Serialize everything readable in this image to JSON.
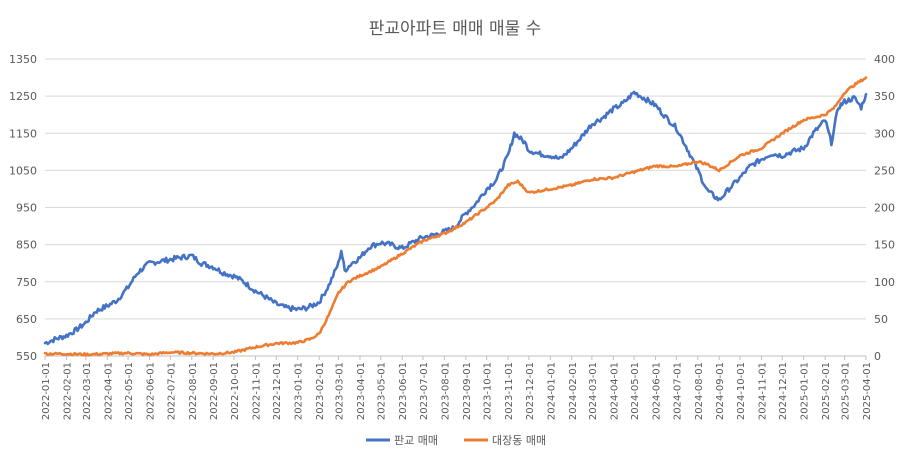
{
  "chart_data": {
    "type": "line",
    "title": "판교아파트 매매 매물 수",
    "xlabel": "",
    "ylabel": "",
    "ylim_left": [
      550,
      1350
    ],
    "ylim_right": [
      0,
      400
    ],
    "y_ticks_left": [
      "550",
      "650",
      "750",
      "850",
      "950",
      "1050",
      "1150",
      "1250",
      "1350"
    ],
    "y_ticks_right": [
      "0",
      "50",
      "100",
      "150",
      "200",
      "250",
      "300",
      "350",
      "400"
    ],
    "x_ticks": [
      "2022-01-01",
      "2022-02-01",
      "2022-03-01",
      "2022-04-01",
      "2022-05-01",
      "2022-06-01",
      "2022-07-01",
      "2022-08-01",
      "2022-09-01",
      "2022-10-01",
      "2022-11-01",
      "2022-12-01",
      "2023-01-01",
      "2023-02-01",
      "2023-03-01",
      "2023-04-01",
      "2023-05-01",
      "2023-06-01",
      "2023-07-01",
      "2023-08-01",
      "2023-09-01",
      "2023-10-01",
      "2023-11-01",
      "2023-12-01",
      "2024-01-01",
      "2024-02-01",
      "2024-03-01",
      "2024-04-01",
      "2024-05-01",
      "2024-06-01",
      "2024-07-01",
      "2024-08-01",
      "2024-09-01",
      "2024-10-01",
      "2024-11-01",
      "2024-12-01",
      "2025-01-01",
      "2025-02-01",
      "2025-03-01",
      "2025-04-01"
    ],
    "grid": true,
    "legend_position": "bottom",
    "series": [
      {
        "name": "판교 매매",
        "axis": "left",
        "color": "#4472C4",
        "points": [
          [
            "2022-01-01",
            585
          ],
          [
            "2022-01-15",
            595
          ],
          [
            "2022-02-01",
            605
          ],
          [
            "2022-02-15",
            620
          ],
          [
            "2022-03-01",
            640
          ],
          [
            "2022-03-15",
            670
          ],
          [
            "2022-04-01",
            685
          ],
          [
            "2022-04-15",
            700
          ],
          [
            "2022-05-01",
            735
          ],
          [
            "2022-05-15",
            775
          ],
          [
            "2022-06-01",
            800
          ],
          [
            "2022-06-15",
            805
          ],
          [
            "2022-07-01",
            810
          ],
          [
            "2022-07-15",
            815
          ],
          [
            "2022-08-01",
            820
          ],
          [
            "2022-08-15",
            800
          ],
          [
            "2022-09-01",
            790
          ],
          [
            "2022-09-15",
            775
          ],
          [
            "2022-10-01",
            765
          ],
          [
            "2022-10-15",
            750
          ],
          [
            "2022-11-01",
            725
          ],
          [
            "2022-11-15",
            710
          ],
          [
            "2022-12-01",
            690
          ],
          [
            "2022-12-15",
            680
          ],
          [
            "2023-01-01",
            675
          ],
          [
            "2023-01-15",
            680
          ],
          [
            "2023-02-01",
            695
          ],
          [
            "2023-02-15",
            740
          ],
          [
            "2023-03-01",
            800
          ],
          [
            "2023-03-05",
            835
          ],
          [
            "2023-03-10",
            780
          ],
          [
            "2023-03-20",
            800
          ],
          [
            "2023-04-01",
            815
          ],
          [
            "2023-04-15",
            845
          ],
          [
            "2023-05-01",
            855
          ],
          [
            "2023-05-15",
            850
          ],
          [
            "2023-06-01",
            840
          ],
          [
            "2023-06-15",
            855
          ],
          [
            "2023-07-01",
            870
          ],
          [
            "2023-07-15",
            875
          ],
          [
            "2023-08-01",
            885
          ],
          [
            "2023-08-15",
            895
          ],
          [
            "2023-09-01",
            935
          ],
          [
            "2023-09-15",
            960
          ],
          [
            "2023-10-01",
            1000
          ],
          [
            "2023-10-15",
            1025
          ],
          [
            "2023-11-01",
            1090
          ],
          [
            "2023-11-10",
            1150
          ],
          [
            "2023-11-25",
            1125
          ],
          [
            "2023-12-01",
            1105
          ],
          [
            "2023-12-15",
            1095
          ],
          [
            "2024-01-01",
            1090
          ],
          [
            "2024-01-15",
            1080
          ],
          [
            "2024-02-01",
            1110
          ],
          [
            "2024-02-15",
            1140
          ],
          [
            "2024-03-01",
            1175
          ],
          [
            "2024-03-15",
            1190
          ],
          [
            "2024-04-01",
            1215
          ],
          [
            "2024-04-15",
            1230
          ],
          [
            "2024-05-01",
            1260
          ],
          [
            "2024-05-15",
            1245
          ],
          [
            "2024-06-01",
            1225
          ],
          [
            "2024-06-15",
            1195
          ],
          [
            "2024-07-01",
            1165
          ],
          [
            "2024-07-15",
            1115
          ],
          [
            "2024-08-01",
            1050
          ],
          [
            "2024-08-15",
            995
          ],
          [
            "2024-09-01",
            970
          ],
          [
            "2024-09-15",
            1000
          ],
          [
            "2024-10-01",
            1030
          ],
          [
            "2024-10-15",
            1060
          ],
          [
            "2024-11-01",
            1080
          ],
          [
            "2024-11-15",
            1095
          ],
          [
            "2024-12-01",
            1090
          ],
          [
            "2024-12-15",
            1100
          ],
          [
            "2025-01-01",
            1110
          ],
          [
            "2025-01-15",
            1150
          ],
          [
            "2025-02-01",
            1185
          ],
          [
            "2025-02-10",
            1125
          ],
          [
            "2025-02-20",
            1220
          ],
          [
            "2025-03-01",
            1235
          ],
          [
            "2025-03-15",
            1245
          ],
          [
            "2025-03-25",
            1220
          ],
          [
            "2025-04-01",
            1255
          ]
        ]
      },
      {
        "name": "대장동 매매",
        "axis": "right",
        "color": "#ED7D31",
        "points": [
          [
            "2022-01-01",
            3
          ],
          [
            "2022-02-01",
            3
          ],
          [
            "2022-03-01",
            2
          ],
          [
            "2022-04-01",
            3
          ],
          [
            "2022-05-01",
            4
          ],
          [
            "2022-06-01",
            2
          ],
          [
            "2022-07-01",
            5
          ],
          [
            "2022-08-01",
            4
          ],
          [
            "2022-09-01",
            3
          ],
          [
            "2022-10-01",
            5
          ],
          [
            "2022-11-01",
            12
          ],
          [
            "2022-12-01",
            17
          ],
          [
            "2023-01-01",
            18
          ],
          [
            "2023-01-20",
            23
          ],
          [
            "2023-02-01",
            30
          ],
          [
            "2023-02-15",
            55
          ],
          [
            "2023-03-01",
            85
          ],
          [
            "2023-03-15",
            100
          ],
          [
            "2023-04-01",
            108
          ],
          [
            "2023-05-01",
            120
          ],
          [
            "2023-06-01",
            138
          ],
          [
            "2023-07-01",
            155
          ],
          [
            "2023-08-01",
            165
          ],
          [
            "2023-09-01",
            180
          ],
          [
            "2023-10-01",
            200
          ],
          [
            "2023-10-15",
            210
          ],
          [
            "2023-11-01",
            230
          ],
          [
            "2023-11-15",
            235
          ],
          [
            "2023-12-01",
            220
          ],
          [
            "2024-01-01",
            225
          ],
          [
            "2024-02-01",
            230
          ],
          [
            "2024-03-01",
            238
          ],
          [
            "2024-04-01",
            240
          ],
          [
            "2024-05-01",
            248
          ],
          [
            "2024-06-01",
            256
          ],
          [
            "2024-07-01",
            255
          ],
          [
            "2024-08-01",
            262
          ],
          [
            "2024-08-15",
            258
          ],
          [
            "2024-09-01",
            250
          ],
          [
            "2024-10-01",
            270
          ],
          [
            "2024-11-01",
            280
          ],
          [
            "2024-12-01",
            300
          ],
          [
            "2025-01-01",
            318
          ],
          [
            "2025-02-01",
            325
          ],
          [
            "2025-02-15",
            335
          ],
          [
            "2025-03-01",
            355
          ],
          [
            "2025-03-15",
            365
          ],
          [
            "2025-04-01",
            375
          ]
        ]
      }
    ]
  }
}
